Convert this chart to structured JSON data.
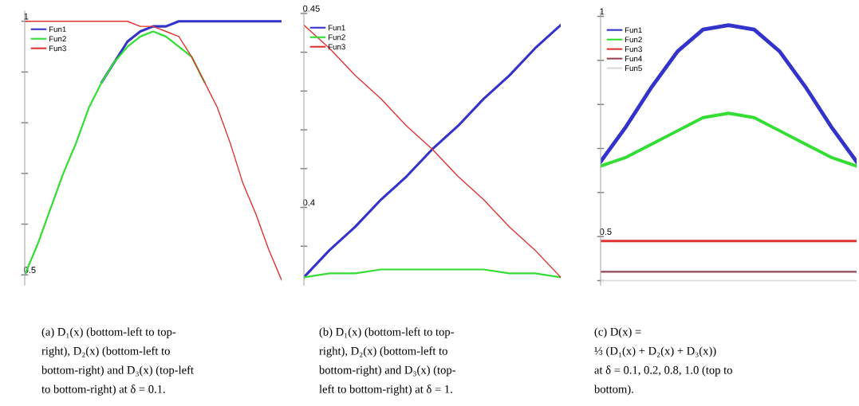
{
  "chart_data": [
    {
      "type": "line",
      "categories": [
        null,
        null,
        null,
        null,
        null,
        null,
        null,
        null,
        null,
        null,
        null,
        null,
        null,
        null,
        null,
        null,
        null,
        null,
        null,
        null,
        null
      ],
      "series": [
        {
          "name": "Fun1",
          "color": "#3333cc",
          "values": [
            null,
            null,
            null,
            null,
            null,
            null,
            0.88,
            0.92,
            0.96,
            0.98,
            0.99,
            0.99,
            1.0,
            1.0,
            1.0,
            1.0,
            1.0,
            1.0,
            1.0,
            1.0,
            1.0
          ]
        },
        {
          "name": "Fun2",
          "color": "#33dd33",
          "values": [
            0.5,
            0.56,
            0.63,
            0.7,
            0.76,
            0.83,
            0.88,
            0.92,
            0.95,
            0.97,
            0.98,
            0.97,
            0.95,
            0.93,
            0.88,
            null,
            null,
            null,
            null,
            null,
            null
          ]
        },
        {
          "name": "Fun3",
          "color": "#dd3333",
          "values": [
            1.0,
            1.0,
            1.0,
            1.0,
            1.0,
            1.0,
            1.0,
            1.0,
            1.0,
            0.99,
            0.99,
            0.98,
            0.97,
            0.93,
            0.88,
            0.83,
            0.76,
            0.68,
            0.62,
            0.55,
            0.49
          ]
        }
      ],
      "ylim": [
        0.48,
        1.02
      ],
      "yticks": [
        {
          "value": 1,
          "label": "1"
        },
        {
          "value": 0.9,
          "label": null
        },
        {
          "value": 0.8,
          "label": null
        },
        {
          "value": 0.7,
          "label": null
        },
        {
          "value": 0.6,
          "label": null
        },
        0.5
      ],
      "legend": "top left",
      "tick_labels": "y",
      "annotations": [
        "(a) D₁(x) (bottom-left to top-",
        "right), D₂(x) (bottom-left to",
        "bottom-right) and D₃(x) (top-left",
        "to bottom-right) at δ = 0.1."
      ]
    },
    {
      "type": "line",
      "categories": [
        null,
        null,
        null,
        null,
        null,
        null,
        null,
        null,
        null,
        null,
        null
      ],
      "series": [
        {
          "name": "Fun1",
          "color": "#3333cc",
          "values": [
            0.382,
            0.389,
            0.395,
            0.402,
            0.408,
            0.415,
            0.421,
            0.428,
            0.434,
            0.441,
            0.447
          ]
        },
        {
          "name": "Fun2",
          "color": "#33dd33",
          "values": [
            0.382,
            0.383,
            0.383,
            0.384,
            0.384,
            0.384,
            0.384,
            0.384,
            0.383,
            0.383,
            0.382
          ]
        },
        {
          "name": "Fun3",
          "color": "#dd3333",
          "values": [
            0.447,
            0.441,
            0.434,
            0.428,
            0.421,
            0.415,
            0.408,
            0.402,
            0.395,
            0.389,
            0.382
          ]
        }
      ],
      "ylim": [
        0.38,
        0.451
      ],
      "yticks": [
        0.45,
        {
          "value": 0.44,
          "label": null
        },
        {
          "value": 0.43,
          "label": null
        },
        {
          "value": 0.42,
          "label": null
        },
        {
          "value": 0.41,
          "label": null
        },
        0.4,
        {
          "value": 0.39,
          "label": null
        }
      ],
      "legend": "top left",
      "tick_labels": "y",
      "annotations": [
        "(b) D₁(x) (bottom-left to top-",
        "right), D₂(x) (bottom-left to",
        "bottom-right) and D₃(x) (top-",
        "left to bottom-right) at δ = 1."
      ]
    },
    {
      "type": "line",
      "categories": [
        null,
        null,
        null,
        null,
        null,
        null,
        null,
        null,
        null,
        null,
        null
      ],
      "series": [
        {
          "name": "Fun1",
          "color": "#3333cc",
          "values": [
            0.67,
            0.75,
            0.84,
            0.92,
            0.97,
            0.98,
            0.97,
            0.92,
            0.84,
            0.75,
            0.67
          ]
        },
        {
          "name": "Fun2",
          "color": "#33dd33",
          "values": [
            0.66,
            0.68,
            0.71,
            0.74,
            0.77,
            0.78,
            0.77,
            0.74,
            0.71,
            0.68,
            0.66
          ]
        },
        {
          "name": "Fun3",
          "color": "#dd3333",
          "values": [
            0.49,
            0.49,
            0.49,
            0.49,
            0.49,
            0.49,
            0.49,
            0.49,
            0.49,
            0.49,
            0.49
          ]
        },
        {
          "name": "Fun4",
          "color": "#994455",
          "values": [
            0.42,
            0.42,
            0.42,
            0.42,
            0.42,
            0.42,
            0.42,
            0.42,
            0.42,
            0.42,
            0.42
          ]
        },
        {
          "name": "Fun5",
          "color": "#d8d8d8",
          "values": [
            0.4,
            0.4,
            0.4,
            0.4,
            0.4,
            0.4,
            0.4,
            0.4,
            0.4,
            0.4,
            0.4
          ]
        }
      ],
      "ylim": [
        0.39,
        1.01
      ],
      "yticks": [
        1,
        {
          "value": 0.9,
          "label": null
        },
        {
          "value": 0.8,
          "label": null
        },
        {
          "value": 0.7,
          "label": null
        },
        {
          "value": 0.6,
          "label": null
        },
        0.5,
        {
          "value": 0.4,
          "label": null
        }
      ],
      "legend": "top left",
      "tick_labels": "y",
      "annotations": [
        "(c) D(x) =",
        "⅓ (D₁(x) + D₂(x) + D₃(x))",
        "at δ = 0.1, 0.2, 0.8, 1.0 (top to",
        "bottom)."
      ]
    }
  ]
}
